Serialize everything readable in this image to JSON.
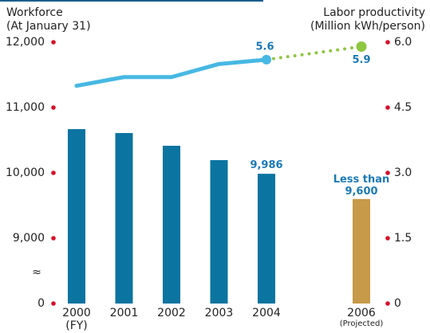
{
  "chart_data": {
    "type": "bar-line",
    "y_label": "Workforce",
    "y_label_note": "(At January 31)",
    "y2_label": "Labor productivity",
    "y2_label_note": "(Million kWh/person)",
    "categories": [
      "2000",
      "2001",
      "2002",
      "2003",
      "2004",
      null,
      "2006"
    ],
    "category_notes": [
      "(FY)",
      null,
      null,
      null,
      null,
      null,
      "(Projected)"
    ],
    "ylim": [
      0,
      12000
    ],
    "axis_break": [
      0,
      8000
    ],
    "axis_break_symbol": "≈",
    "yticks": [
      0,
      {
        "value": 9000,
        "label": "9,000"
      },
      {
        "value": 10000,
        "label": "10,000"
      },
      {
        "value": 11000,
        "label": "11,000"
      },
      {
        "value": 12000,
        "label": "12,000"
      }
    ],
    "y2lim": [
      0,
      6
    ],
    "y2ticks": [
      0,
      1.5,
      {
        "value": 3,
        "label": "3.0"
      },
      4.5,
      {
        "value": 6,
        "label": "6.0"
      }
    ],
    "tick_color": "#d7102a",
    "series": [
      {
        "type": "bar",
        "values": [
          10670,
          10610,
          10415,
          10195,
          9986,
          null,
          9600
        ],
        "colors": [
          "#0b74a0",
          "#0b74a0",
          "#0b74a0",
          "#0b74a0",
          "#0b74a0",
          null,
          "#c69a48"
        ],
        "value_labels": [
          null,
          null,
          null,
          null,
          "9,986",
          null,
          "Less than 9,600"
        ]
      },
      {
        "type": "line",
        "axis": "y2",
        "values": [
          5.0,
          5.2,
          5.2,
          5.5,
          5.6,
          null,
          5.9
        ],
        "color": "#47b8e3",
        "projected_color": "#8dc63f",
        "projected_from": 4,
        "labeled_points": [
          4,
          6
        ]
      }
    ],
    "label_color": "#1a7ab6"
  }
}
